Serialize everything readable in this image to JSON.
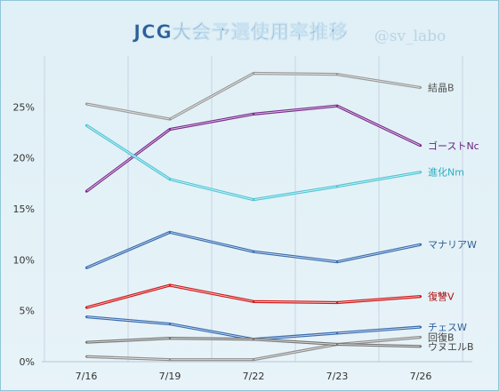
{
  "chart_data": {
    "type": "line",
    "title": "JCG大会予選使用率推移",
    "watermark": "@sv_labo",
    "x": [
      "7/16",
      "7/19",
      "7/22",
      "7/23",
      "7/26"
    ],
    "ylim": [
      0,
      30
    ],
    "yticks": [
      "0%",
      "5%",
      "10%",
      "15%",
      "20%",
      "25%"
    ],
    "ytick_values": [
      0,
      5,
      10,
      15,
      20,
      25
    ],
    "grid": "vertical",
    "xlabel": "",
    "ylabel": "",
    "series": [
      {
        "name": "結晶B",
        "color": "#9a9a9a",
        "label_color": "#555555",
        "values": [
          25.3,
          23.8,
          28.3,
          28.2,
          26.9
        ]
      },
      {
        "name": "ゴーストNc",
        "color": "#7b2c8e",
        "label_color": "#6a2080",
        "values": [
          16.7,
          22.8,
          24.3,
          25.1,
          21.2
        ]
      },
      {
        "name": "進化Nm",
        "color": "#4fc6d6",
        "label_color": "#2aaec2",
        "values": [
          23.2,
          17.9,
          15.9,
          17.2,
          18.6
        ]
      },
      {
        "name": "マナリアW",
        "color": "#3a6db0",
        "label_color": "#2d5f98",
        "values": [
          9.2,
          12.7,
          10.8,
          9.8,
          11.5
        ]
      },
      {
        "name": "復讐V",
        "color": "#d11a1a",
        "label_color": "#b01010",
        "values": [
          5.3,
          7.5,
          5.9,
          5.8,
          6.4
        ]
      },
      {
        "name": "チェスW",
        "color": "#3a6db0",
        "label_color": "#2d5f98",
        "values": [
          4.4,
          3.7,
          2.2,
          2.8,
          3.4
        ]
      },
      {
        "name": "回復B",
        "color": "#8e8e8e",
        "label_color": "#444444",
        "values": [
          0.5,
          0.2,
          0.2,
          1.7,
          2.4
        ]
      },
      {
        "name": "ウヌエルB",
        "color": "#757575",
        "label_color": "#444444",
        "values": [
          1.9,
          2.3,
          2.2,
          1.7,
          1.5
        ]
      }
    ]
  }
}
